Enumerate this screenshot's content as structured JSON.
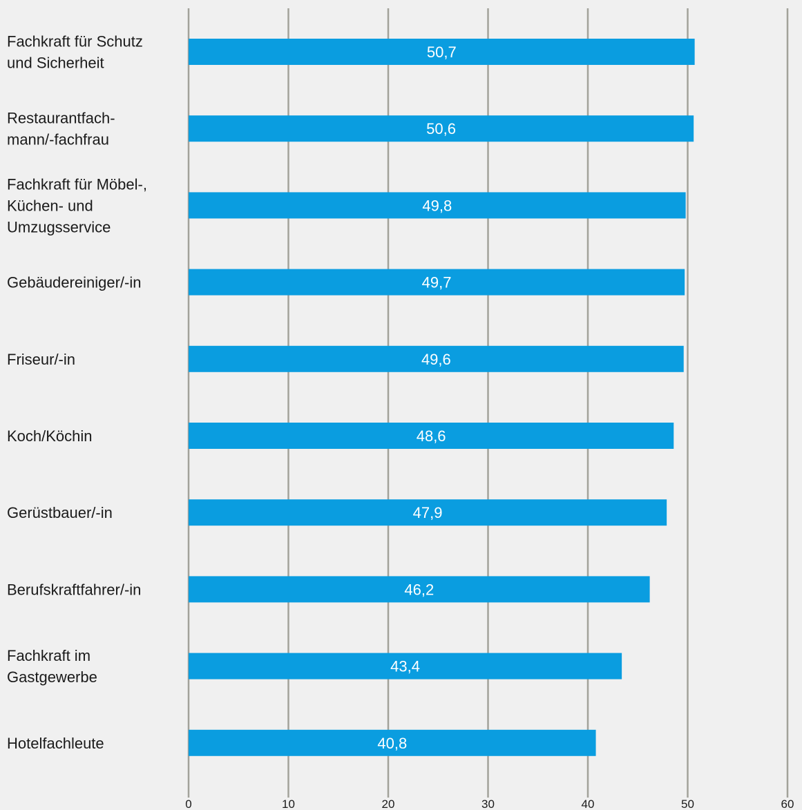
{
  "chart_data": {
    "type": "bar",
    "orientation": "horizontal",
    "categories": [
      [
        "Fachkraft für Schutz",
        "und Sicherheit"
      ],
      [
        "Restaurantfach-",
        "mann/-fachfrau"
      ],
      [
        "Fachkraft für Möbel-,",
        "Küchen- und",
        "Umzugsservice"
      ],
      [
        "Gebäudereiniger/-in"
      ],
      [
        "Friseur/-in"
      ],
      [
        "Koch/Köchin"
      ],
      [
        "Gerüstbauer/-in"
      ],
      [
        "Berufskraftfahrer/-in"
      ],
      [
        "Fachkraft im",
        "Gastgewerbe"
      ],
      [
        "Hotelfachleute"
      ]
    ],
    "values": [
      50.7,
      50.6,
      49.8,
      49.7,
      49.6,
      48.6,
      47.9,
      46.2,
      43.4,
      40.8
    ],
    "value_labels": [
      "50,7",
      "50,6",
      "49,8",
      "49,7",
      "49,6",
      "48,6",
      "47,9",
      "46,2",
      "43,4",
      "40,8"
    ],
    "xlim": [
      0,
      60
    ],
    "xticks": [
      "0",
      "10",
      "20",
      "30",
      "40",
      "50",
      "60"
    ],
    "grid": true,
    "title": "",
    "xlabel": "",
    "ylabel": ""
  },
  "colors": {
    "bar": "#0a9de0",
    "grid": "#a2a29a",
    "background": "#f0f0f0"
  }
}
